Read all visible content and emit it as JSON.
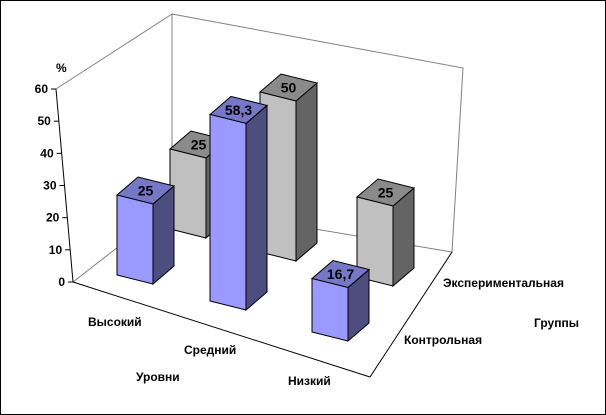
{
  "chart_data": {
    "type": "bar3d",
    "categories": [
      "Высокий",
      "Средний",
      "Низкий"
    ],
    "series": [
      {
        "name": "Контрольная",
        "values": [
          25,
          58.3,
          16.7
        ],
        "labels": [
          "25",
          "58,3",
          "16,7"
        ],
        "color": "#9999ff"
      },
      {
        "name": "Экспериментальная",
        "values": [
          25,
          50,
          25
        ],
        "labels": [
          "25",
          "50",
          "25"
        ],
        "color": "#c0c0c0"
      }
    ],
    "ylabel": "%",
    "xlabel": "Уровни",
    "zlabel": "Группы",
    "ylim": [
      0,
      60
    ],
    "yticks": [
      "0",
      "10",
      "20",
      "30",
      "40",
      "50",
      "60"
    ],
    "grid": false
  }
}
